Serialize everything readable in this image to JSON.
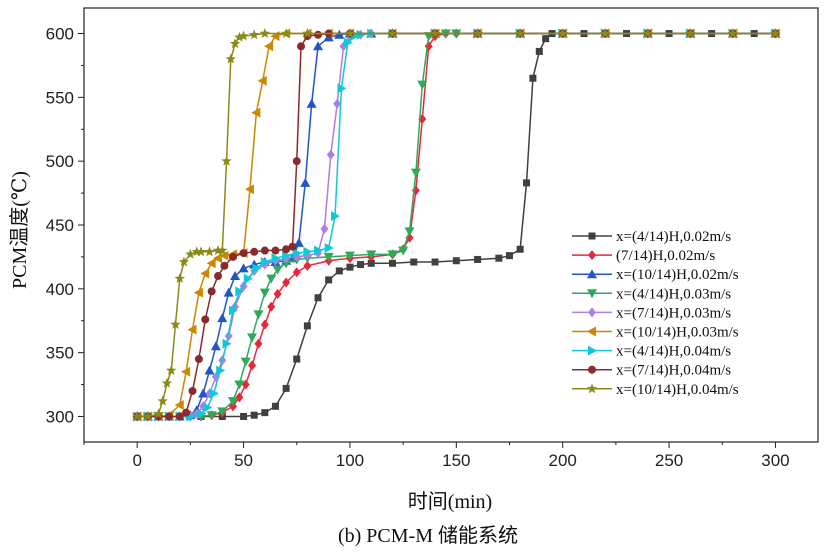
{
  "chart_data": {
    "type": "line",
    "title": "",
    "xlabel": "时间(min)",
    "ylabel": "PCM温度(℃)",
    "caption": "(b) PCM-M 储能系统",
    "xlim": [
      -25,
      320
    ],
    "ylim": [
      280,
      620
    ],
    "xticks": [
      0,
      50,
      100,
      150,
      200,
      250,
      300
    ],
    "yticks": [
      300,
      350,
      400,
      450,
      500,
      550,
      600
    ],
    "grid": false,
    "legend_position": "right",
    "series": [
      {
        "name": "x=(4/14)H,0.02m/s",
        "color": "#404040",
        "marker": "square",
        "x": [
          0,
          10,
          20,
          30,
          40,
          50,
          55,
          60,
          65,
          70,
          75,
          80,
          85,
          90,
          95,
          100,
          105,
          110,
          120,
          130,
          140,
          150,
          160,
          170,
          175,
          180,
          183,
          186,
          189,
          192,
          195,
          200,
          210,
          220,
          230,
          240,
          250,
          260,
          270,
          280,
          290,
          300
        ],
        "y": [
          300,
          300,
          300,
          300,
          300,
          300,
          301,
          303,
          308,
          322,
          345,
          371,
          393,
          407,
          414,
          417,
          419,
          420,
          420,
          421,
          421,
          422,
          423,
          424,
          426,
          431,
          483,
          565,
          586,
          596,
          600,
          600,
          600,
          600,
          600,
          600,
          600,
          600,
          600,
          600,
          600,
          600
        ]
      },
      {
        "name": "(7/14)H,0.02m/s",
        "color": "#e8283a",
        "marker": "diamond",
        "x": [
          0,
          5,
          10,
          15,
          20,
          25,
          30,
          35,
          40,
          45,
          48,
          51,
          54,
          57,
          60,
          63,
          66,
          70,
          75,
          80,
          90,
          100,
          110,
          120,
          125,
          128,
          131,
          134,
          137,
          140,
          145,
          150,
          160,
          180,
          200,
          220,
          240,
          260,
          280,
          300
        ],
        "y": [
          300,
          300,
          300,
          300,
          300,
          300,
          300,
          301,
          303,
          308,
          315,
          325,
          340,
          357,
          372,
          386,
          396,
          405,
          413,
          418,
          422,
          424,
          425,
          427,
          431,
          440,
          477,
          533,
          590,
          598,
          600,
          600,
          600,
          600,
          600,
          600,
          600,
          600,
          600,
          600
        ]
      },
      {
        "name": "x=(10/14)H,0.02m/s",
        "color": "#1f57c8",
        "marker": "triangle-up",
        "x": [
          0,
          5,
          10,
          15,
          20,
          25,
          28,
          31,
          34,
          37,
          40,
          43,
          46,
          50,
          55,
          60,
          65,
          70,
          73,
          76,
          79,
          82,
          85,
          90,
          95,
          100,
          110,
          120,
          140,
          160,
          180,
          200,
          220,
          240,
          260,
          280,
          300
        ],
        "y": [
          300,
          300,
          300,
          300,
          300,
          301,
          305,
          318,
          336,
          355,
          377,
          397,
          410,
          416,
          419,
          421,
          421,
          422,
          424,
          436,
          483,
          545,
          590,
          597,
          599,
          600,
          600,
          600,
          600,
          600,
          600,
          600,
          600,
          600,
          600,
          600,
          600
        ]
      },
      {
        "name": "x=(4/14)H,0.03m/s",
        "color": "#2daa5a",
        "marker": "triangle-down",
        "x": [
          0,
          5,
          10,
          15,
          20,
          25,
          30,
          35,
          40,
          45,
          48,
          51,
          54,
          57,
          60,
          63,
          66,
          70,
          75,
          80,
          90,
          100,
          110,
          120,
          125,
          128,
          131,
          134,
          137,
          140,
          145,
          150,
          160,
          180,
          200,
          220,
          240,
          260,
          280,
          300
        ],
        "y": [
          300,
          300,
          300,
          300,
          300,
          300,
          300,
          301,
          304,
          312,
          325,
          343,
          362,
          380,
          397,
          408,
          415,
          420,
          423,
          424,
          425,
          426,
          427,
          427,
          430,
          445,
          491,
          560,
          598,
          600,
          600,
          600,
          600,
          600,
          600,
          600,
          600,
          600,
          600,
          600
        ]
      },
      {
        "name": "x=(7/14)H,0.03m/s",
        "color": "#b07ee0",
        "marker": "diamond",
        "x": [
          0,
          5,
          10,
          15,
          20,
          25,
          28,
          31,
          34,
          37,
          40,
          43,
          46,
          50,
          55,
          60,
          65,
          70,
          75,
          80,
          85,
          88,
          91,
          94,
          97,
          100,
          105,
          110,
          120,
          140,
          160,
          180,
          200,
          220,
          240,
          260,
          280,
          300
        ],
        "y": [
          300,
          300,
          300,
          300,
          300,
          300,
          302,
          308,
          318,
          331,
          344,
          363,
          386,
          402,
          414,
          419,
          422,
          424,
          425,
          426,
          428,
          447,
          505,
          545,
          590,
          597,
          599,
          600,
          600,
          600,
          600,
          600,
          600,
          600,
          600,
          600,
          600,
          600
        ]
      },
      {
        "name": "x=(10/14)H,0.03m/s",
        "color": "#cc8800",
        "marker": "triangle-left",
        "x": [
          0,
          5,
          10,
          15,
          20,
          23,
          26,
          29,
          32,
          35,
          38,
          41,
          45,
          50,
          53,
          56,
          59,
          62,
          65,
          70,
          80,
          90,
          100,
          120,
          140,
          160,
          180,
          200,
          220,
          240,
          260,
          280,
          300
        ],
        "y": [
          300,
          300,
          300,
          301,
          309,
          335,
          368,
          397,
          412,
          420,
          424,
          426,
          427,
          428,
          478,
          538,
          563,
          590,
          598,
          600,
          600,
          600,
          600,
          600,
          600,
          600,
          600,
          600,
          600,
          600,
          600,
          600,
          600
        ]
      },
      {
        "name": "x=(4/14)H,0.04m/s",
        "color": "#10c8d8",
        "marker": "triangle-right",
        "x": [
          0,
          5,
          10,
          15,
          20,
          25,
          30,
          33,
          36,
          39,
          42,
          45,
          48,
          52,
          56,
          60,
          65,
          70,
          75,
          80,
          85,
          90,
          93,
          96,
          99,
          102,
          105,
          110,
          120,
          140,
          160,
          180,
          200,
          220,
          240,
          260,
          280,
          300
        ],
        "y": [
          300,
          300,
          300,
          300,
          300,
          300,
          302,
          307,
          318,
          336,
          357,
          383,
          398,
          408,
          416,
          421,
          424,
          426,
          428,
          429,
          430,
          432,
          457,
          557,
          593,
          598,
          599,
          600,
          600,
          600,
          600,
          600,
          600,
          600,
          600,
          600,
          600,
          600
        ]
      },
      {
        "name": "x=(7/14)H,0.04m/s",
        "color": "#8b2a2a",
        "marker": "circle",
        "x": [
          0,
          5,
          10,
          15,
          20,
          23,
          26,
          29,
          32,
          35,
          38,
          41,
          45,
          50,
          55,
          60,
          65,
          70,
          73,
          75,
          77,
          80,
          85,
          90,
          100,
          120,
          140,
          160,
          180,
          200,
          220,
          240,
          260,
          280,
          300
        ],
        "y": [
          300,
          300,
          300,
          300,
          300,
          303,
          320,
          345,
          376,
          398,
          410,
          418,
          425,
          428,
          429,
          430,
          430,
          431,
          433,
          500,
          590,
          598,
          599,
          600,
          600,
          600,
          600,
          600,
          600,
          600,
          600,
          600,
          600,
          600,
          600
        ]
      },
      {
        "name": "x=(10/14)H,0.04m/s",
        "color": "#8a8a18",
        "marker": "star",
        "x": [
          0,
          5,
          10,
          12,
          14,
          16,
          18,
          20,
          22,
          25,
          28,
          30,
          34,
          38,
          40,
          42,
          44,
          46,
          48,
          50,
          55,
          60,
          70,
          80,
          100,
          120,
          140,
          160,
          180,
          200,
          220,
          240,
          260,
          280,
          300
        ],
        "y": [
          300,
          300,
          302,
          312,
          326,
          336,
          372,
          408,
          421,
          427,
          429,
          429,
          429,
          430,
          430,
          500,
          580,
          592,
          597,
          598,
          599,
          600,
          600,
          600,
          600,
          600,
          600,
          600,
          600,
          600,
          600,
          600,
          600,
          600,
          600
        ]
      }
    ]
  }
}
